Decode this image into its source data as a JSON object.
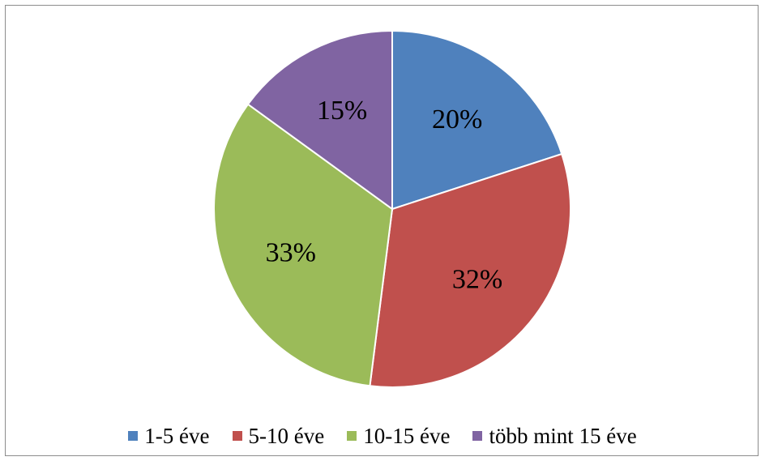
{
  "chart_data": {
    "type": "pie",
    "title": "",
    "categories": [
      "1-5 éve",
      "5-10 éve",
      "10-15 éve",
      "több mint 15 éve"
    ],
    "values": [
      20,
      32,
      33,
      15
    ],
    "value_labels": [
      "20%",
      "32%",
      "33%",
      "15%"
    ],
    "colors": [
      "#4f81bd",
      "#c0504d",
      "#9bbb59",
      "#8064a2"
    ],
    "start_angle_deg": 0,
    "direction": "clockwise",
    "legend_position": "bottom"
  },
  "legend": {
    "item0": "1-5 éve",
    "item1": "5-10 éve",
    "item2": "10-15 éve",
    "item3": "több mint 15 éve"
  }
}
